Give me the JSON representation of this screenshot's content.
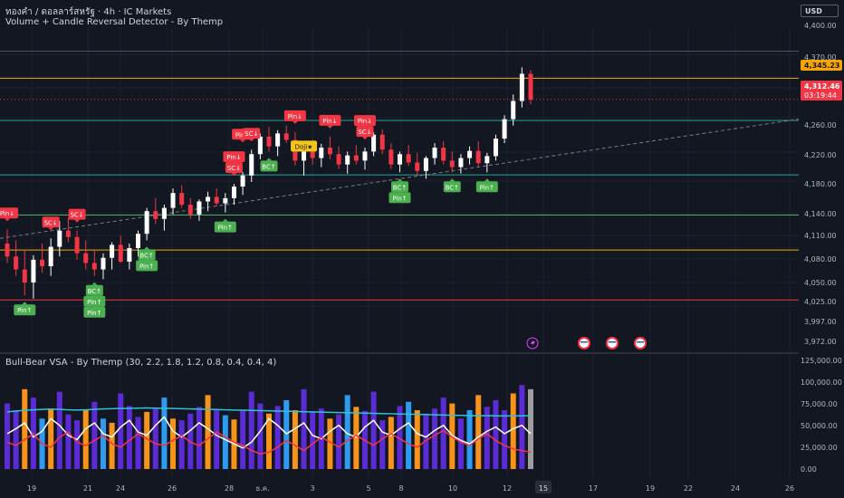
{
  "header": {
    "symbol_line": "ทองคำ / ดอลลาร์สหรัฐ · 4h · IC Markets",
    "indicator_line": "Volume + Candle Reversal Detector - By Themp",
    "currency": "USD"
  },
  "sub_header": {
    "title": "Bull-Bear VSA - By Themp (30, 2.2, 1.8, 1.2, 0.8, 0.4, 0.4, 4)"
  },
  "price_axis": {
    "ticks": [
      "4,400.00",
      "4,345.23",
      "4,312.46",
      "03:19:44",
      "4,260.00",
      "4,220.00",
      "4,180.00",
      "4,140.00",
      "4,110.00",
      "4,080.00",
      "4,050.00",
      "4,025.00",
      "3,997.00",
      "3,972.00"
    ],
    "plain_ticks": [
      "4,400.00",
      "4,260.00",
      "4,220.00",
      "4,180.00",
      "4,140.00",
      "4,110.00",
      "4,080.00",
      "4,050.00",
      "4,025.00",
      "3,997.00",
      "3,972.00"
    ],
    "orange_label": "4,345.23",
    "last_price": "4,312.46",
    "countdown": "03:19:44",
    "hidden_label": "4,370.00"
  },
  "volume_axis": {
    "ticks": [
      "125,000.00",
      "100,000.00",
      "75,000.00",
      "50,000.00",
      "25,000.00",
      "0.00"
    ]
  },
  "time_axis": {
    "ticks": [
      "19",
      "21",
      "24",
      "26",
      "28",
      "ธ.ค.",
      "3",
      "5",
      "8",
      "10",
      "12",
      "15",
      "17",
      "19",
      "22",
      "24",
      "26"
    ],
    "highlighted": "15"
  },
  "colors": {
    "background": "#131722",
    "bull": "#ffffff",
    "bear": "#f23645",
    "label_green": "#4caf50",
    "label_red": "#f23645",
    "label_yellow": "#f5c518",
    "orange_line": "#f7a600",
    "teal_line": "#26a69a",
    "green_line": "#4caf50",
    "red_line": "#f23645",
    "volume_purple": "#5b2bd6",
    "volume_orange": "#f7931a",
    "volume_sky": "#2e9bf0",
    "volume_gray": "#9e9e9e",
    "ma_teal": "#2ec4d6"
  },
  "chart_data": {
    "type": "candlestick",
    "symbol": "ทองคำ / ดอลลาร์สหรัฐ",
    "timeframe": "4h",
    "ylim": [
      3960,
      4410
    ],
    "horizontal_levels": [
      {
        "price": 4387,
        "color": "gray"
      },
      {
        "price": 4345.23,
        "color": "orange"
      },
      {
        "price": 4312.46,
        "color": "red-dotted"
      },
      {
        "price": 4280,
        "color": "teal"
      },
      {
        "price": 4196,
        "color": "teal"
      },
      {
        "price": 4134,
        "color": "green"
      },
      {
        "price": 4080,
        "color": "orange"
      },
      {
        "price": 4003,
        "color": "red"
      }
    ],
    "trendline": {
      "from": 4098,
      "to": 4282,
      "style": "dashed"
    },
    "candles": [
      [
        4090,
        4112,
        4060,
        4070
      ],
      [
        4070,
        4095,
        4040,
        4050
      ],
      [
        4050,
        4080,
        4010,
        4030
      ],
      [
        4030,
        4072,
        4005,
        4065
      ],
      [
        4065,
        4090,
        4045,
        4055
      ],
      [
        4055,
        4098,
        4040,
        4085
      ],
      [
        4085,
        4125,
        4070,
        4110
      ],
      [
        4110,
        4130,
        4092,
        4100
      ],
      [
        4100,
        4110,
        4065,
        4075
      ],
      [
        4075,
        4095,
        4050,
        4060
      ],
      [
        4060,
        4080,
        4040,
        4050
      ],
      [
        4050,
        4075,
        4035,
        4068
      ],
      [
        4068,
        4092,
        4050,
        4088
      ],
      [
        4088,
        4102,
        4060,
        4062
      ],
      [
        4062,
        4090,
        4050,
        4083
      ],
      [
        4083,
        4110,
        4070,
        4105
      ],
      [
        4105,
        4145,
        4095,
        4140
      ],
      [
        4140,
        4160,
        4120,
        4128
      ],
      [
        4128,
        4150,
        4110,
        4145
      ],
      [
        4145,
        4175,
        4135,
        4168
      ],
      [
        4168,
        4180,
        4145,
        4150
      ],
      [
        4150,
        4160,
        4128,
        4135
      ],
      [
        4135,
        4158,
        4125,
        4155
      ],
      [
        4155,
        4170,
        4140,
        4162
      ],
      [
        4162,
        4175,
        4148,
        4152
      ],
      [
        4152,
        4168,
        4138,
        4160
      ],
      [
        4160,
        4182,
        4150,
        4178
      ],
      [
        4178,
        4200,
        4165,
        4195
      ],
      [
        4195,
        4235,
        4185,
        4228
      ],
      [
        4228,
        4260,
        4220,
        4255
      ],
      [
        4255,
        4270,
        4232,
        4240
      ],
      [
        4240,
        4265,
        4225,
        4260
      ],
      [
        4260,
        4272,
        4245,
        4250
      ],
      [
        4250,
        4262,
        4210,
        4218
      ],
      [
        4218,
        4240,
        4195,
        4232
      ],
      [
        4232,
        4250,
        4212,
        4222
      ],
      [
        4222,
        4244,
        4208,
        4238
      ],
      [
        4238,
        4255,
        4220,
        4228
      ],
      [
        4228,
        4240,
        4205,
        4212
      ],
      [
        4212,
        4232,
        4198,
        4226
      ],
      [
        4226,
        4242,
        4212,
        4218
      ],
      [
        4218,
        4238,
        4204,
        4232
      ],
      [
        4232,
        4262,
        4225,
        4258
      ],
      [
        4258,
        4266,
        4228,
        4235
      ],
      [
        4235,
        4245,
        4205,
        4212
      ],
      [
        4212,
        4232,
        4200,
        4228
      ],
      [
        4228,
        4242,
        4210,
        4215
      ],
      [
        4215,
        4230,
        4195,
        4202
      ],
      [
        4202,
        4225,
        4190,
        4222
      ],
      [
        4222,
        4245,
        4212,
        4238
      ],
      [
        4238,
        4248,
        4212,
        4218
      ],
      [
        4218,
        4232,
        4200,
        4208
      ],
      [
        4208,
        4228,
        4198,
        4222
      ],
      [
        4222,
        4240,
        4212,
        4233
      ],
      [
        4233,
        4248,
        4208,
        4214
      ],
      [
        4214,
        4230,
        4200,
        4225
      ],
      [
        4225,
        4258,
        4218,
        4252
      ],
      [
        4252,
        4288,
        4245,
        4282
      ],
      [
        4282,
        4320,
        4272,
        4310
      ],
      [
        4310,
        4362,
        4300,
        4352
      ],
      [
        4352,
        4358,
        4305,
        4312
      ]
    ],
    "signals": [
      {
        "i": 0,
        "text": "Pin↓",
        "kind": "bear",
        "at": "above"
      },
      {
        "i": 2,
        "text": "Pin↑",
        "kind": "bull",
        "at": "below"
      },
      {
        "i": 5,
        "text": "SC↓",
        "kind": "bear",
        "at": "above"
      },
      {
        "i": 8,
        "text": "SC↓",
        "kind": "bear",
        "at": "above"
      },
      {
        "i": 10,
        "text": "BC↑",
        "kind": "bull",
        "at": "below"
      },
      {
        "i": 10,
        "text": "Pin↑",
        "kind": "bull",
        "at": "below2"
      },
      {
        "i": 10,
        "text": "Pin↑",
        "kind": "bull",
        "at": "below3"
      },
      {
        "i": 16,
        "text": "BC↑",
        "kind": "bull",
        "at": "below"
      },
      {
        "i": 16,
        "text": "Pin↑",
        "kind": "bull",
        "at": "below2"
      },
      {
        "i": 25,
        "text": "Pin↑",
        "kind": "bull",
        "at": "below"
      },
      {
        "i": 26,
        "text": "SC↓",
        "kind": "bear",
        "at": "above"
      },
      {
        "i": 26,
        "text": "Pin↓",
        "kind": "bear",
        "at": "above2"
      },
      {
        "i": 27,
        "text": "Pin↓",
        "kind": "bear",
        "at": "above3"
      },
      {
        "i": 28,
        "text": "SC↓",
        "kind": "bear",
        "at": "above"
      },
      {
        "i": 30,
        "text": "BC↑",
        "kind": "bull",
        "at": "below"
      },
      {
        "i": 33,
        "text": "Pin↓",
        "kind": "bear",
        "at": "above"
      },
      {
        "i": 34,
        "text": "Doji★",
        "kind": "doji",
        "at": "mid"
      },
      {
        "i": 37,
        "text": "Pin↓",
        "kind": "bear",
        "at": "above"
      },
      {
        "i": 41,
        "text": "SC↓",
        "kind": "bear",
        "at": "above"
      },
      {
        "i": 41,
        "text": "Pin↓",
        "kind": "bear",
        "at": "above2"
      },
      {
        "i": 45,
        "text": "BC↑",
        "kind": "bull",
        "at": "below"
      },
      {
        "i": 45,
        "text": "Pin↑",
        "kind": "bull",
        "at": "below2"
      },
      {
        "i": 51,
        "text": "BC↑",
        "kind": "bull",
        "at": "below"
      },
      {
        "i": 55,
        "text": "Pin↑",
        "kind": "bull",
        "at": "below"
      }
    ],
    "volume": {
      "ylim": [
        0,
        125000
      ],
      "values": [
        78000,
        70000,
        95000,
        85000,
        60000,
        72000,
        92000,
        65000,
        58000,
        70000,
        80000,
        60000,
        55000,
        90000,
        75000,
        62000,
        68000,
        72000,
        85000,
        60000,
        58000,
        66000,
        74000,
        88000,
        70000,
        64000,
        59000,
        70000,
        92000,
        78000,
        66000,
        75000,
        82000,
        70000,
        95000,
        68000,
        72000,
        60000,
        65000,
        88000,
        74000,
        69000,
        92000,
        58000,
        62000,
        75000,
        80000,
        70000,
        66000,
        72000,
        85000,
        78000,
        60000,
        70000,
        88000,
        74000,
        82000,
        70000,
        90000,
        100000,
        95000
      ],
      "ma": [
        68000,
        69000,
        70000,
        70500,
        71000,
        71200,
        71000,
        70500,
        70200,
        70500,
        71000,
        71500,
        71800,
        72000,
        72200,
        72500,
        72800,
        72500,
        72200,
        72000,
        71800,
        71500,
        71200,
        71000,
        70800,
        70500,
        70200,
        70000,
        69800,
        69500,
        69200,
        69000,
        68800,
        68500,
        68200,
        68000,
        67800,
        67500,
        67200,
        67000,
        66800,
        66500,
        66300,
        66000,
        65800,
        65500,
        65300,
        65000,
        64800,
        64500,
        64300,
        64000,
        63800,
        63600,
        63500,
        63400,
        63300,
        63200,
        63200,
        63300,
        63500
      ],
      "white_line": [
        42000,
        48000,
        55000,
        38000,
        45000,
        60000,
        52000,
        40000,
        35000,
        48000,
        55000,
        42000,
        38000,
        50000,
        58000,
        44000,
        40000,
        52000,
        62000,
        45000,
        38000,
        46000,
        55000,
        48000,
        40000,
        35000,
        30000,
        25000,
        32000,
        45000,
        60000,
        52000,
        42000,
        48000,
        55000,
        40000,
        36000,
        45000,
        52000,
        42000,
        38000,
        50000,
        58000,
        44000,
        40000,
        48000,
        55000,
        42000,
        38000,
        46000,
        52000,
        40000,
        34000,
        30000,
        38000,
        45000,
        50000,
        42000,
        48000,
        52000,
        42000
      ],
      "red_line": [
        32000,
        28000,
        35000,
        42000,
        30000,
        26000,
        38000,
        44000,
        32000,
        28000,
        34000,
        40000,
        30000,
        26000,
        34000,
        42000,
        36000,
        30000,
        28000,
        34000,
        40000,
        32000,
        28000,
        36000,
        44000,
        38000,
        32000,
        28000,
        22000,
        18000,
        20000,
        26000,
        34000,
        28000,
        22000,
        30000,
        38000,
        32000,
        26000,
        34000,
        40000,
        34000,
        28000,
        36000,
        42000,
        36000,
        30000,
        26000,
        34000,
        40000,
        46000,
        38000,
        32000,
        28000,
        36000,
        42000,
        34000,
        28000,
        24000,
        22000,
        20000
      ]
    }
  }
}
